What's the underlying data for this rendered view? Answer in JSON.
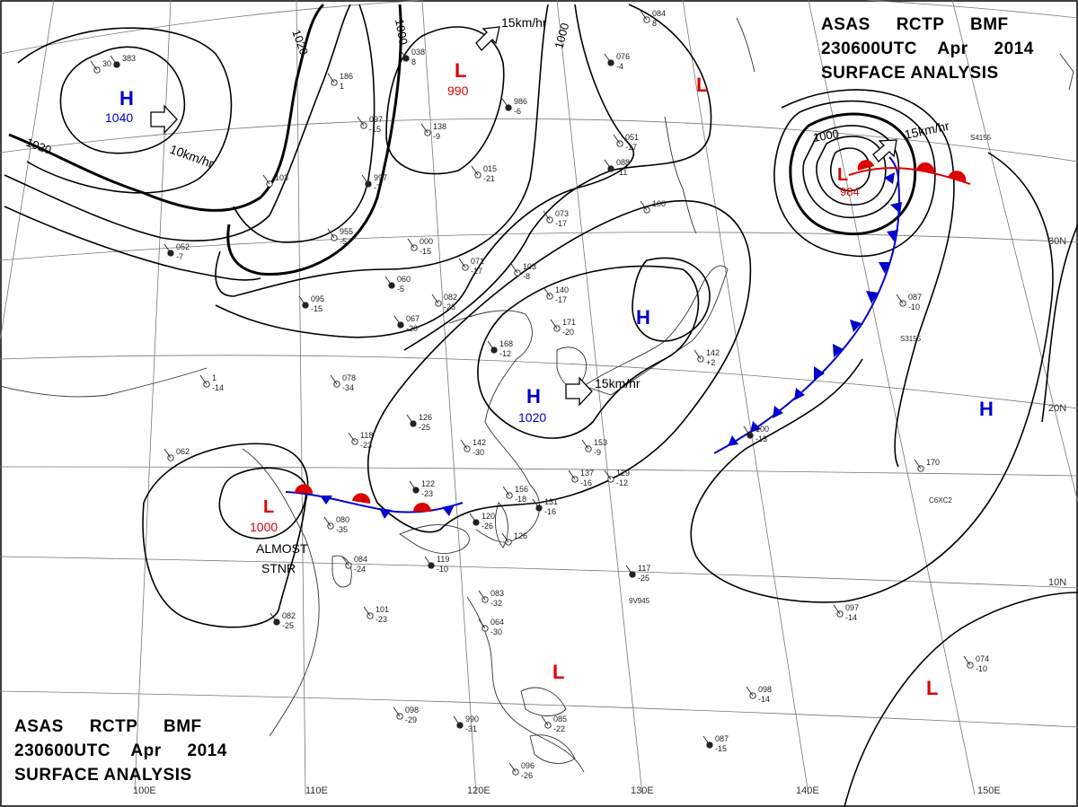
{
  "title": {
    "agency": "ASAS",
    "station": "RCTP",
    "office": "BMF",
    "datetime": "230600UTC",
    "month": "Apr",
    "year": "2014",
    "product": "SURFACE ANALYSIS"
  },
  "pressure_centers": [
    {
      "type": "H",
      "value": "1040",
      "color": "#0000cc"
    },
    {
      "type": "L",
      "value": "990",
      "color": "#dd0000"
    },
    {
      "type": "L",
      "value": "",
      "color": "#dd0000"
    },
    {
      "type": "L",
      "value": "984",
      "color": "#dd0000"
    },
    {
      "type": "H",
      "value": "",
      "color": "#0000cc"
    },
    {
      "type": "H",
      "value": "1020",
      "color": "#0000cc"
    },
    {
      "type": "H",
      "value": "",
      "color": "#0000cc"
    },
    {
      "type": "L",
      "value": "1000",
      "color": "#dd0000"
    },
    {
      "type": "L",
      "value": "",
      "color": "#dd0000"
    },
    {
      "type": "L",
      "value": "",
      "color": "#dd0000"
    }
  ],
  "isobar_labels": [
    "1020",
    "1020",
    "1000",
    "1000",
    "1000"
  ],
  "motion_labels": [
    "10km/hr",
    "15km/hr",
    "15km/hr",
    "15km/hr"
  ],
  "note": [
    "ALMOST",
    "STNR"
  ],
  "latitude_labels": [
    "30N",
    "20N",
    "10N"
  ],
  "longitude_labels": [
    "100E",
    "110E",
    "120E",
    "130E",
    "140E",
    "150E"
  ],
  "station_plots": [
    {
      "t": "383",
      "b": ""
    },
    {
      "t": "30",
      "b": ""
    },
    {
      "t": "186",
      "b": "1"
    },
    {
      "t": "038",
      "b": "8"
    },
    {
      "t": "097",
      "b": "-15"
    },
    {
      "t": "103",
      "b": ""
    },
    {
      "t": "997",
      "b": "-7"
    },
    {
      "t": "955",
      "b": "-5"
    },
    {
      "t": "138",
      "b": "-9"
    },
    {
      "t": "986",
      "b": "-6"
    },
    {
      "t": "015",
      "b": "-21"
    },
    {
      "t": "000",
      "b": "-15"
    },
    {
      "t": "060",
      "b": "-5"
    },
    {
      "t": "071",
      "b": "-17"
    },
    {
      "t": "082",
      "b": "-26"
    },
    {
      "t": "067",
      "b": "-20"
    },
    {
      "t": "103",
      "b": "-8"
    },
    {
      "t": "073",
      "b": "-17"
    },
    {
      "t": "088",
      "b": "-11"
    },
    {
      "t": "140",
      "b": "-17"
    },
    {
      "t": "171",
      "b": "-20"
    },
    {
      "t": "168",
      "b": "-12"
    },
    {
      "t": "051",
      "b": "-17"
    },
    {
      "t": "078",
      "b": "-34"
    },
    {
      "t": "126",
      "b": "-25"
    },
    {
      "t": "118",
      "b": "-23"
    },
    {
      "t": "142",
      "b": "-30"
    },
    {
      "t": "122",
      "b": "-23"
    },
    {
      "t": "153",
      "b": "-9"
    },
    {
      "t": "156",
      "b": "-18"
    },
    {
      "t": "131",
      "b": "-16"
    },
    {
      "t": "137",
      "b": "-16"
    },
    {
      "t": "129",
      "b": "-12"
    },
    {
      "t": "120",
      "b": "-26"
    },
    {
      "t": "080",
      "b": "-35"
    },
    {
      "t": "084",
      "b": "-24"
    },
    {
      "t": "119",
      "b": "-10"
    },
    {
      "t": "126",
      "b": ""
    },
    {
      "t": "101",
      "b": "-23"
    },
    {
      "t": "082",
      "b": "-25"
    },
    {
      "t": "083",
      "b": "-32"
    },
    {
      "t": "064",
      "b": "-30"
    },
    {
      "t": "117",
      "b": "-25"
    },
    {
      "t": "097",
      "b": "-14"
    },
    {
      "t": "098",
      "b": "-29"
    },
    {
      "t": "990",
      "b": "-31"
    },
    {
      "t": "085",
      "b": "-22"
    },
    {
      "t": "096",
      "b": "-26"
    },
    {
      "t": "087",
      "b": "-15"
    },
    {
      "t": "098",
      "b": "-14"
    },
    {
      "t": "074",
      "b": "-10"
    },
    {
      "t": "100",
      "b": "-13"
    },
    {
      "t": "170",
      "b": ""
    },
    {
      "t": "087",
      "b": "-10"
    },
    {
      "t": "076",
      "b": "-4"
    },
    {
      "t": "084",
      "b": "8"
    },
    {
      "t": "142",
      "b": "+2"
    },
    {
      "t": "052",
      "b": "-7"
    },
    {
      "t": "1",
      "b": "-14"
    },
    {
      "t": "062",
      "b": ""
    },
    {
      "t": "095",
      "b": "-15"
    },
    {
      "t": "100",
      "b": ""
    }
  ],
  "station_codes": [
    "S4155",
    "S3155",
    "C6XC2",
    "9V945"
  ]
}
